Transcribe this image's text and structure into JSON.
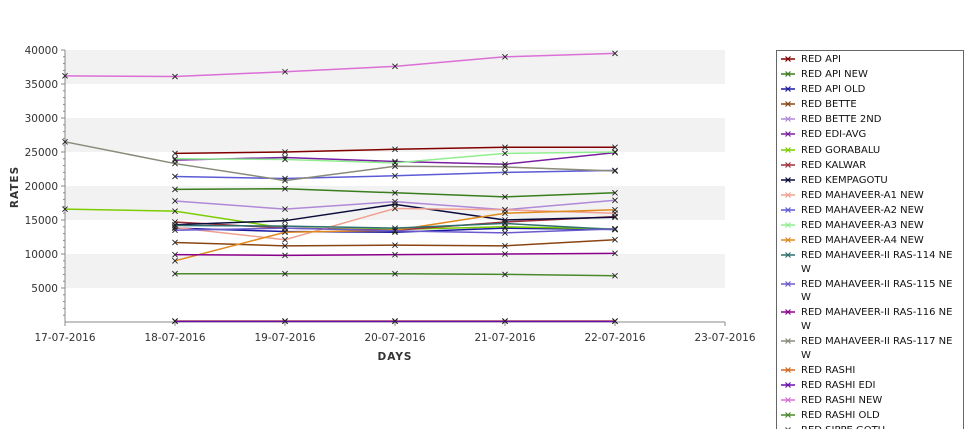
{
  "chart_data": {
    "type": "line",
    "title": "",
    "xlabel": "DAYS",
    "ylabel": "RATES",
    "ylim": [
      0,
      40000
    ],
    "yticks": [
      5000,
      10000,
      15000,
      20000,
      25000,
      30000,
      35000,
      40000
    ],
    "xlim": [
      "17-07-2016",
      "23-07-2016"
    ],
    "x_tick_labels": [
      "17-07-2016",
      "18-07-2016",
      "19-07-2016",
      "20-07-2016",
      "21-07-2016",
      "22-07-2016",
      "23-07-2016"
    ],
    "grid": "alternating horizontal bands",
    "legend_position": "right",
    "series": [
      {
        "name": "RED API",
        "color": "#800000",
        "x": [
          "18-07-2016",
          "19-07-2016",
          "20-07-2016",
          "21-07-2016",
          "22-07-2016"
        ],
        "values": [
          24800,
          25000,
          25400,
          25700,
          25700
        ]
      },
      {
        "name": "RED API NEW",
        "color": "#3a7d1c",
        "x": [
          "18-07-2016",
          "19-07-2016",
          "20-07-2016",
          "21-07-2016",
          "22-07-2016"
        ],
        "values": [
          19500,
          19600,
          19000,
          18400,
          19000
        ]
      },
      {
        "name": "RED API OLD",
        "color": "#1a1aa0",
        "x": [
          "18-07-2016",
          "19-07-2016",
          "20-07-2016",
          "21-07-2016",
          "22-07-2016"
        ],
        "values": [
          13800,
          13300,
          13200,
          13800,
          13600
        ]
      },
      {
        "name": "RED BETTE",
        "color": "#8b4513",
        "x": [
          "18-07-2016",
          "19-07-2016",
          "20-07-2016",
          "21-07-2016",
          "22-07-2016"
        ],
        "values": [
          11700,
          11200,
          11300,
          11200,
          12100
        ]
      },
      {
        "name": "RED BETTE 2ND",
        "color": "#b089d8",
        "x": [
          "18-07-2016",
          "19-07-2016",
          "20-07-2016",
          "21-07-2016",
          "22-07-2016"
        ],
        "values": [
          17800,
          16600,
          17700,
          16500,
          17900
        ]
      },
      {
        "name": "RED EDI-AVG",
        "color": "#7b1fa2",
        "x": [
          "18-07-2016",
          "19-07-2016",
          "20-07-2016",
          "21-07-2016",
          "22-07-2016"
        ],
        "values": [
          23800,
          24200,
          23600,
          23200,
          24900
        ]
      },
      {
        "name": "RED GORABALU",
        "color": "#7ccd00",
        "x": [
          "17-07-2016",
          "18-07-2016",
          "19-07-2016",
          "20-07-2016",
          "21-07-2016",
          "22-07-2016"
        ],
        "values": [
          16600,
          16300,
          13800,
          13600,
          14000,
          13700
        ]
      },
      {
        "name": "RED KALWAR",
        "color": "#a0303c",
        "x": [
          "18-07-2016",
          "19-07-2016",
          "20-07-2016",
          "21-07-2016",
          "22-07-2016"
        ],
        "values": [
          14700,
          13800,
          13500,
          14700,
          15500
        ]
      },
      {
        "name": "RED KEMPAGOTU",
        "color": "#0a0a3c",
        "x": [
          "18-07-2016",
          "19-07-2016",
          "20-07-2016",
          "21-07-2016",
          "22-07-2016"
        ],
        "values": [
          14300,
          14900,
          17300,
          15000,
          15400
        ]
      },
      {
        "name": "RED MAHAVEER-A1 NEW",
        "color": "#f0a090",
        "x": [
          "18-07-2016",
          "19-07-2016",
          "20-07-2016",
          "21-07-2016",
          "22-07-2016"
        ],
        "values": [
          13900,
          12100,
          16700,
          16500,
          16000
        ]
      },
      {
        "name": "RED MAHAVEER-A2 NEW",
        "color": "#5b5bd6",
        "x": [
          "18-07-2016",
          "19-07-2016",
          "20-07-2016",
          "21-07-2016",
          "22-07-2016"
        ],
        "values": [
          21400,
          21100,
          21500,
          22000,
          22300
        ]
      },
      {
        "name": "RED MAHAVEER-A3 NEW",
        "color": "#90ee90",
        "x": [
          "18-07-2016",
          "19-07-2016",
          "20-07-2016",
          "21-07-2016",
          "22-07-2016"
        ],
        "values": [
          24000,
          23900,
          23400,
          24800,
          25000
        ]
      },
      {
        "name": "RED MAHAVEER-A4 NEW",
        "color": "#e08a1e",
        "x": [
          "18-07-2016",
          "19-07-2016",
          "20-07-2016",
          "21-07-2016",
          "22-07-2016"
        ],
        "values": [
          9000,
          13200,
          13500,
          16000,
          16500
        ]
      },
      {
        "name": "RED MAHAVEER-II RAS-114 NEW",
        "color": "#2f6f6f",
        "x": [
          "18-07-2016",
          "19-07-2016",
          "20-07-2016",
          "21-07-2016",
          "22-07-2016"
        ],
        "values": [
          14200,
          14100,
          13800,
          14500,
          13600
        ]
      },
      {
        "name": "RED MAHAVEER-II RAS-115 NEW",
        "color": "#6a5acd",
        "x": [
          "18-07-2016",
          "19-07-2016",
          "20-07-2016",
          "21-07-2016",
          "22-07-2016"
        ],
        "values": [
          13500,
          13800,
          13400,
          13100,
          13700
        ]
      },
      {
        "name": "RED MAHAVEER-II RAS-116 NEW",
        "color": "#8b008b",
        "x": [
          "18-07-2016",
          "19-07-2016",
          "20-07-2016",
          "21-07-2016",
          "22-07-2016"
        ],
        "values": [
          9900,
          9800,
          9900,
          10000,
          10100
        ]
      },
      {
        "name": "RED MAHAVEER-II RAS-117 NEW",
        "color": "#8a8a7a",
        "x": [
          "17-07-2016",
          "18-07-2016",
          "19-07-2016",
          "20-07-2016",
          "21-07-2016",
          "22-07-2016"
        ],
        "values": [
          26500,
          23300,
          20800,
          22900,
          22800,
          22200
        ]
      },
      {
        "name": "RED RASHI",
        "color": "#d2691e",
        "x": [
          "18-07-2016",
          "19-07-2016",
          "20-07-2016",
          "21-07-2016",
          "22-07-2016"
        ],
        "values": [
          150,
          150,
          150,
          150,
          150
        ]
      },
      {
        "name": "RED RASHI EDI",
        "color": "#6a0dad",
        "x": [
          "18-07-2016",
          "19-07-2016",
          "20-07-2016",
          "21-07-2016",
          "22-07-2016"
        ],
        "values": [
          100,
          100,
          100,
          100,
          100
        ]
      },
      {
        "name": "RED RASHI NEW",
        "color": "#da70d6",
        "x": [
          "17-07-2016",
          "18-07-2016",
          "19-07-2016",
          "20-07-2016",
          "21-07-2016",
          "22-07-2016"
        ],
        "values": [
          36200,
          36100,
          36800,
          37600,
          39000,
          39500
        ]
      },
      {
        "name": "RED RASHI OLD",
        "color": "#4a8a2a",
        "x": [
          "18-07-2016",
          "19-07-2016",
          "20-07-2016",
          "21-07-2016",
          "22-07-2016"
        ],
        "values": [
          7100,
          7100,
          7100,
          7000,
          6800
        ]
      },
      {
        "name": "RED SIPPE GOTU",
        "color": "#555555",
        "x": [],
        "values": []
      }
    ]
  }
}
